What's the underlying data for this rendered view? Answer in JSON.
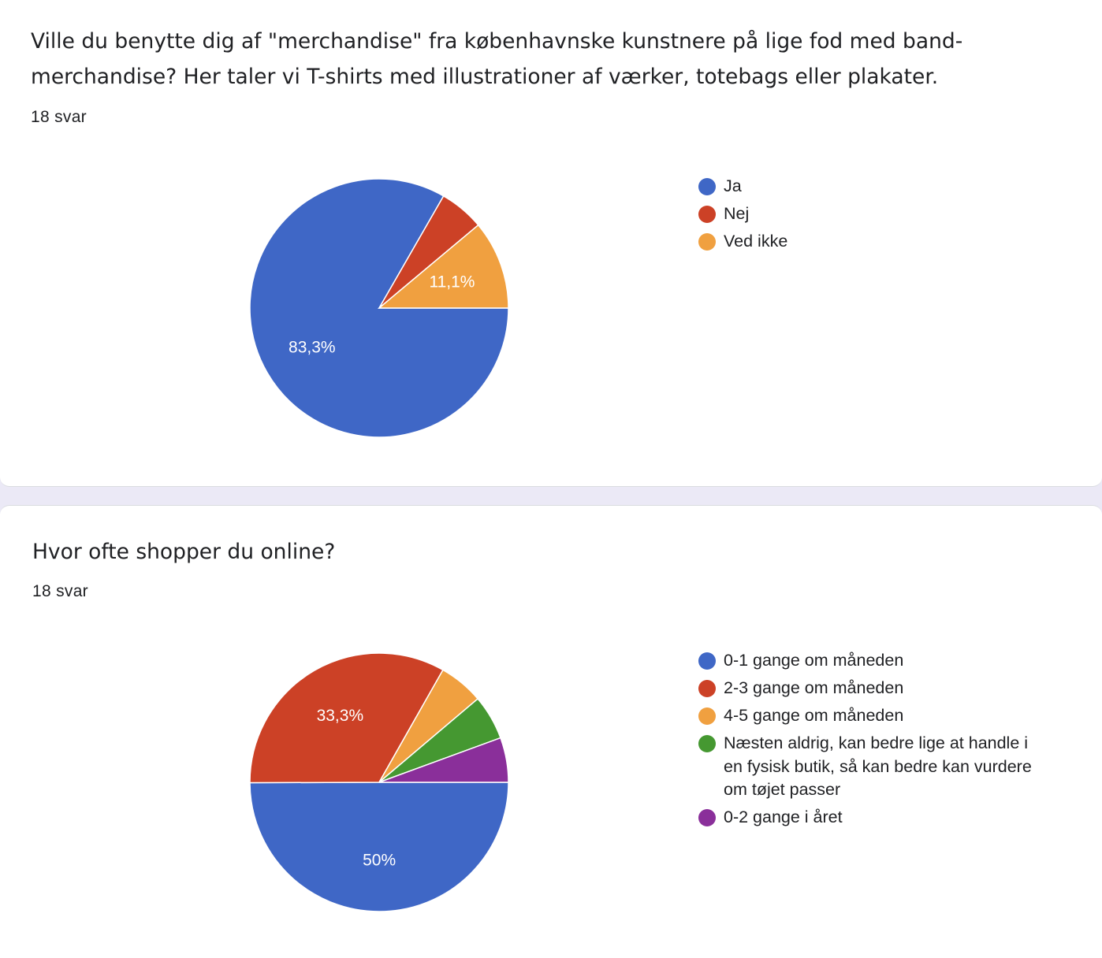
{
  "cards": [
    {
      "question": "Ville du benytte dig af \"merchandise\" fra københavnske kunstnere på lige fod med band-merchandise? Her taler vi T-shirts med illustrationer af værker, totebags eller plakater.",
      "responses": "18 svar"
    },
    {
      "question": "Hvor ofte shopper du online?",
      "responses": "18 svar"
    }
  ],
  "chart_data": [
    {
      "type": "pie",
      "categories": [
        "Ja",
        "Nej",
        "Ved ikke"
      ],
      "values": [
        83.3,
        5.6,
        11.1
      ],
      "labels": [
        "83,3%",
        "",
        "11,1%"
      ],
      "colors": [
        "#3f67c6",
        "#cc4126",
        "#f0a040"
      ],
      "legend_position": "right",
      "start": "3 o'clock",
      "direction": "clockwise"
    },
    {
      "type": "pie",
      "categories": [
        "0-1 gange om måneden",
        "2-3 gange om måneden",
        "4-5 gange om måneden",
        "Næsten aldrig, kan bedre lige at handle i en fysisk butik, så kan bedre kan vurdere om tøjet passer",
        "0-2 gange i året"
      ],
      "values": [
        50,
        33.3,
        5.6,
        5.6,
        5.6
      ],
      "labels": [
        "50%",
        "33,3%",
        "",
        "",
        ""
      ],
      "colors": [
        "#3f67c6",
        "#cc4126",
        "#f0a040",
        "#459831",
        "#8a2f9a"
      ],
      "legend_position": "right",
      "start": "3 o'clock",
      "direction": "clockwise"
    }
  ]
}
